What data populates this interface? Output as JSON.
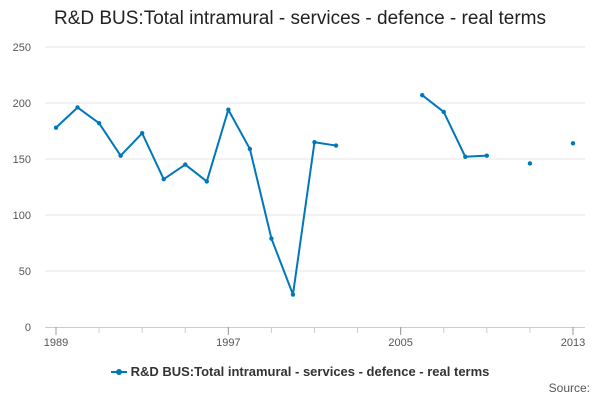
{
  "chart_data": {
    "type": "line",
    "title": "R&D BUS:Total intramural - services - defence - real terms",
    "xlabel": "",
    "ylabel": "",
    "x": [
      1989,
      1990,
      1991,
      1992,
      1993,
      1994,
      1995,
      1996,
      1997,
      1998,
      1999,
      2000,
      2001,
      2002,
      2003,
      2004,
      2005,
      2006,
      2007,
      2008,
      2009,
      2010,
      2011,
      2012,
      2013
    ],
    "series": [
      {
        "name": "R&D BUS:Total intramural - services - defence - real terms",
        "color": "#0077bb",
        "values": [
          178,
          196,
          182,
          153,
          173,
          132,
          145,
          130,
          194,
          159,
          79,
          29,
          165,
          162,
          null,
          null,
          null,
          207,
          192,
          152,
          153,
          null,
          146,
          null,
          164
        ]
      }
    ],
    "ylim": [
      0,
      250
    ],
    "y_ticks": [
      "0",
      "50",
      "100",
      "150",
      "200",
      "250"
    ],
    "x_ticks": [
      "1989",
      "1997",
      "2005",
      "2013"
    ],
    "grid": true,
    "legend_position": "bottom"
  },
  "source_label": "Source:"
}
